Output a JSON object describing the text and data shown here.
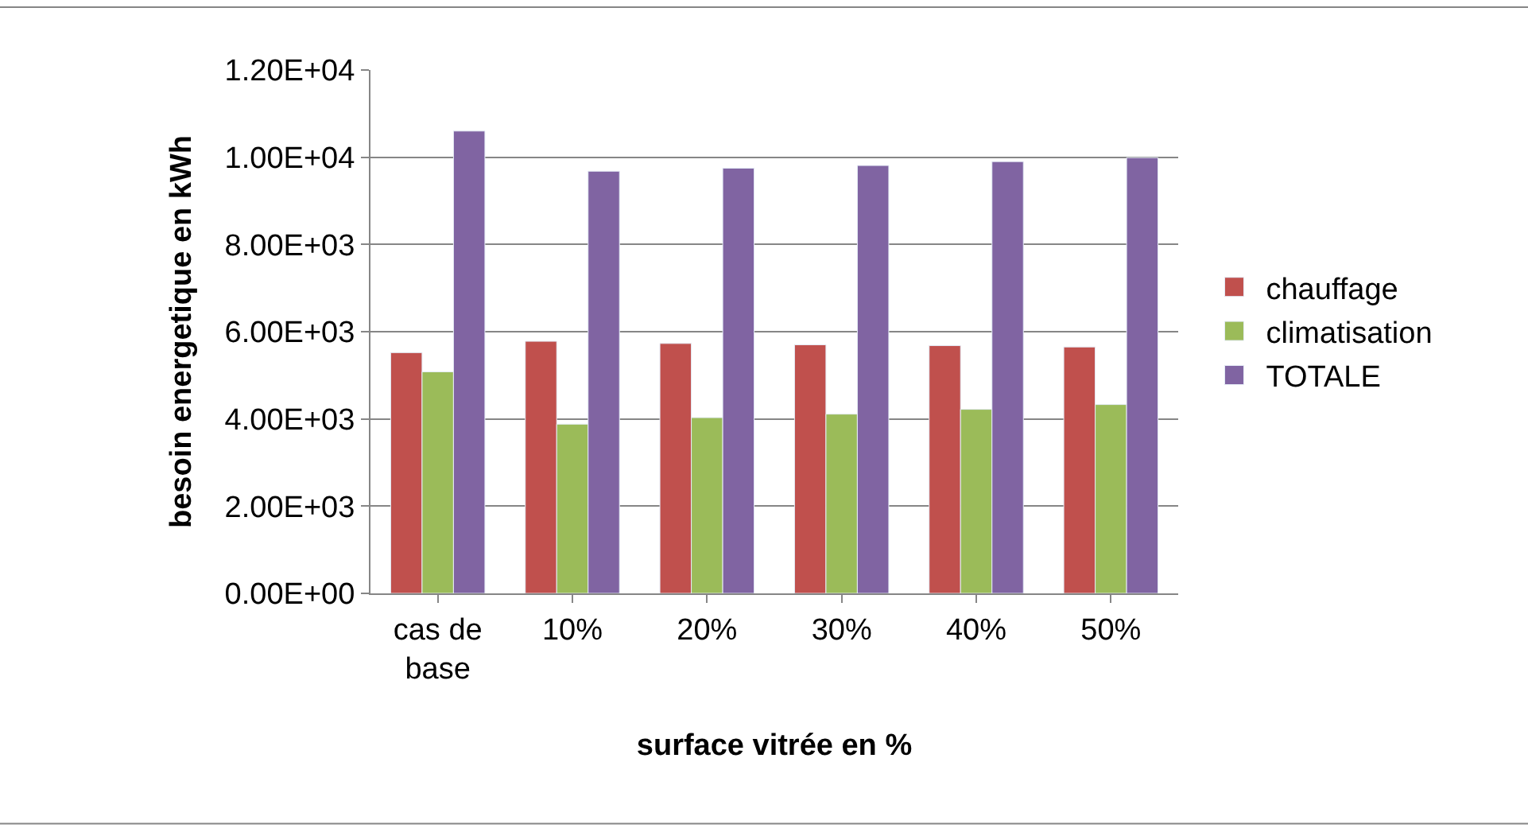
{
  "chart_data": {
    "type": "bar",
    "xlabel": "surface vitrée en %",
    "ylabel": "besoin energetique en kWh",
    "categories": [
      "cas de base",
      "10%",
      "20%",
      "30%",
      "40%",
      "50%"
    ],
    "series": [
      {
        "name": "chauffage",
        "color": "#c0504d",
        "values": [
          5520,
          5780,
          5730,
          5700,
          5680,
          5650
        ]
      },
      {
        "name": "climatisation",
        "color": "#9bbb59",
        "values": [
          5080,
          3880,
          4030,
          4110,
          4220,
          4330
        ]
      },
      {
        "name": "TOTALE",
        "color": "#8064a2",
        "values": [
          10600,
          9680,
          9750,
          9810,
          9900,
          9990
        ]
      }
    ],
    "ylim": [
      0,
      12000
    ],
    "yticks": [
      {
        "value": 0,
        "label": "0.00E+00"
      },
      {
        "value": 2000,
        "label": "2.00E+03"
      },
      {
        "value": 4000,
        "label": "4.00E+03"
      },
      {
        "value": 6000,
        "label": "6.00E+03"
      },
      {
        "value": 8000,
        "label": "8.00E+03"
      },
      {
        "value": 10000,
        "label": "1.00E+04"
      },
      {
        "value": 12000,
        "label": "1.20E+04"
      }
    ],
    "grid": "y",
    "legend": "right"
  }
}
